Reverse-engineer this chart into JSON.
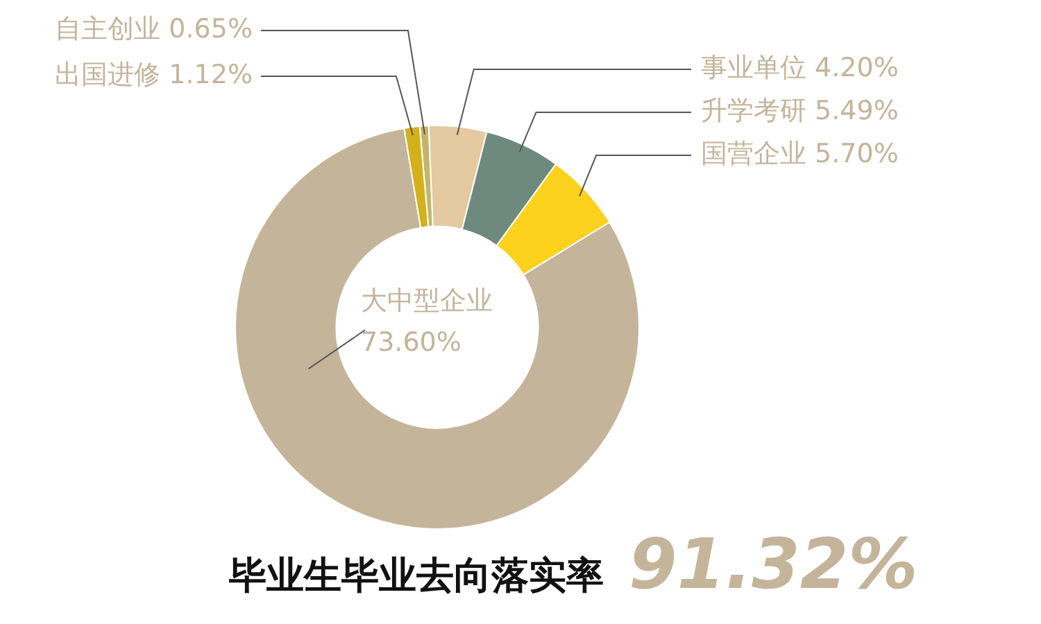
{
  "chart_data": {
    "type": "donut",
    "title": "毕业生毕业去向落实率",
    "annotations": [
      "91.32%"
    ],
    "categories": [
      "自主创业",
      "事业单位",
      "升学考研",
      "国营企业",
      "大中型企业",
      "出国进修"
    ],
    "values": [
      0.65,
      4.2,
      5.49,
      5.7,
      73.6,
      1.12
    ],
    "value_labels": [
      "0.65%",
      "4.20%",
      "5.49%",
      "5.70%",
      "73.60%",
      "1.12%"
    ],
    "colors": [
      "#c5b56a",
      "#e4c9a1",
      "#6e8a7e",
      "#fcd21c",
      "#c4b49a",
      "#d4b11a"
    ],
    "legend": false
  }
}
